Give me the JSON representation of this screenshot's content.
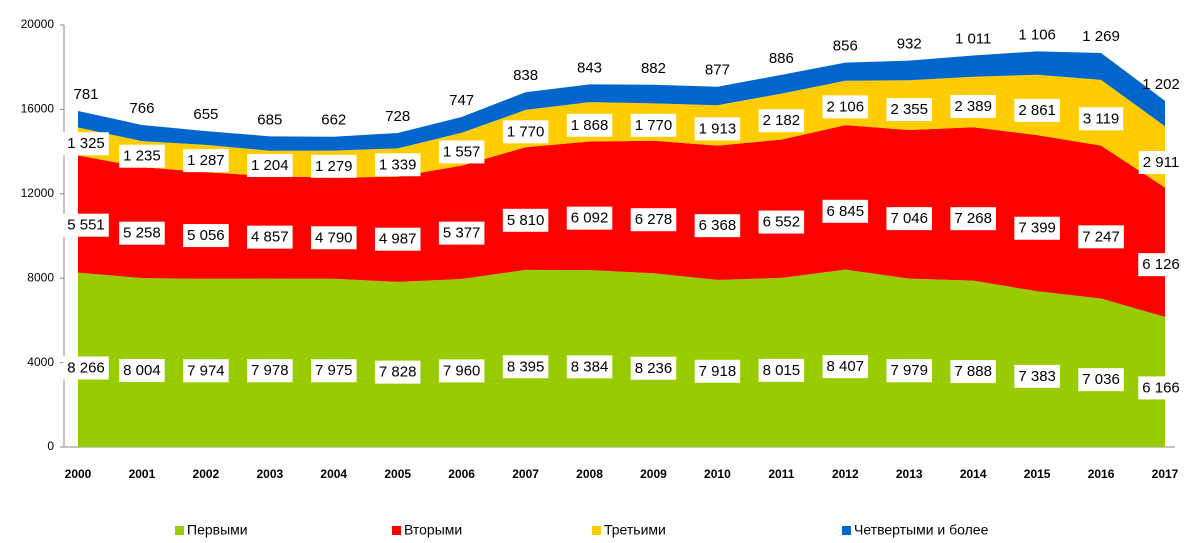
{
  "chart_data": {
    "type": "area",
    "categories": [
      "2000",
      "2001",
      "2002",
      "2003",
      "2004",
      "2005",
      "2006",
      "2007",
      "2008",
      "2009",
      "2010",
      "2011",
      "2012",
      "2013",
      "2014",
      "2015",
      "2016",
      "2017"
    ],
    "ylim": [
      0,
      20000
    ],
    "yticks": [
      0,
      4000,
      8000,
      12000,
      16000,
      20000
    ],
    "stacked": true,
    "legend": "bottom",
    "series": [
      {
        "name": "Первыми",
        "color": "#99cc00",
        "values": [
          8266,
          8004,
          7974,
          7978,
          7975,
          7828,
          7960,
          8395,
          8384,
          8236,
          7918,
          8015,
          8407,
          7979,
          7888,
          7383,
          7036,
          6166
        ],
        "value_labels": [
          "8 266",
          "8 004",
          "7 974",
          "7 978",
          "7 975",
          "7 828",
          "7 960",
          "8 395",
          "8 384",
          "8 236",
          "7 918",
          "8 015",
          "8 407",
          "7 979",
          "7 888",
          "7 383",
          "7 036",
          "6 166"
        ]
      },
      {
        "name": "Вторыми",
        "color": "#ff0000",
        "values": [
          5551,
          5258,
          5056,
          4857,
          4790,
          4987,
          5377,
          5810,
          6092,
          6278,
          6368,
          6552,
          6845,
          7046,
          7268,
          7399,
          7247,
          6126
        ],
        "value_labels": [
          "5 551",
          "5 258",
          "5 056",
          "4 857",
          "4 790",
          "4 987",
          "5 377",
          "5 810",
          "6 092",
          "6 278",
          "6 368",
          "6 552",
          "6 845",
          "7 046",
          "7 268",
          "7 399",
          "7 247",
          "6 126"
        ]
      },
      {
        "name": "Третьими",
        "color": "#ffcc00",
        "values": [
          1325,
          1235,
          1287,
          1204,
          1279,
          1339,
          1557,
          1770,
          1868,
          1770,
          1913,
          2182,
          2106,
          2355,
          2389,
          2861,
          3119,
          2911
        ],
        "value_labels": [
          "1 325",
          "1 235",
          "1 287",
          "1 204",
          "1 279",
          "1 339",
          "1 557",
          "1 770",
          "1 868",
          "1 770",
          "1 913",
          "2 182",
          "2 106",
          "2 355",
          "2 389",
          "2 861",
          "3 119",
          "2 911"
        ]
      },
      {
        "name": "Четвертыми и более",
        "color": "#0066cc",
        "values": [
          781,
          766,
          655,
          685,
          662,
          728,
          747,
          838,
          843,
          882,
          877,
          886,
          856,
          932,
          1011,
          1106,
          1269,
          1202
        ],
        "value_labels": [
          "781",
          "766",
          "655",
          "685",
          "662",
          "728",
          "747",
          "838",
          "843",
          "882",
          "877",
          "886",
          "856",
          "932",
          "1 011",
          "1 106",
          "1 269",
          "1 202"
        ]
      }
    ]
  }
}
